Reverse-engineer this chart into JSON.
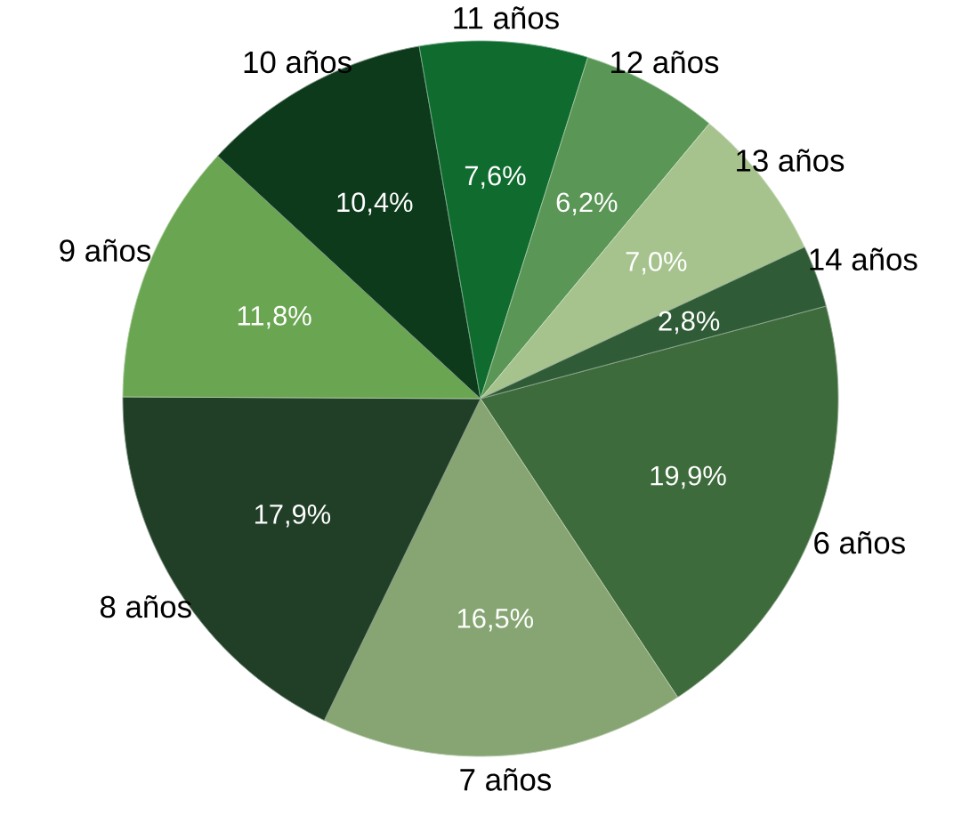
{
  "chart_data": {
    "type": "pie",
    "categories": [
      "6 años",
      "7 años",
      "8 años",
      "9 años",
      "10 años",
      "11 años",
      "12 años",
      "13 años",
      "14 años"
    ],
    "values": [
      19.9,
      16.5,
      17.9,
      11.8,
      10.4,
      7.6,
      6.2,
      7.0,
      2.8
    ],
    "colors": [
      "#3d6b3b",
      "#86a572",
      "#213f27",
      "#6aa552",
      "#0e3a1c",
      "#0f6b2e",
      "#5a9655",
      "#a6c38e",
      "#2f5c36"
    ],
    "value_labels": [
      "19,9%",
      "16,5%",
      "17,9%",
      "11,8%",
      "10,4%",
      "7,6%",
      "6,2%",
      "7,0%",
      "2,8%"
    ]
  }
}
